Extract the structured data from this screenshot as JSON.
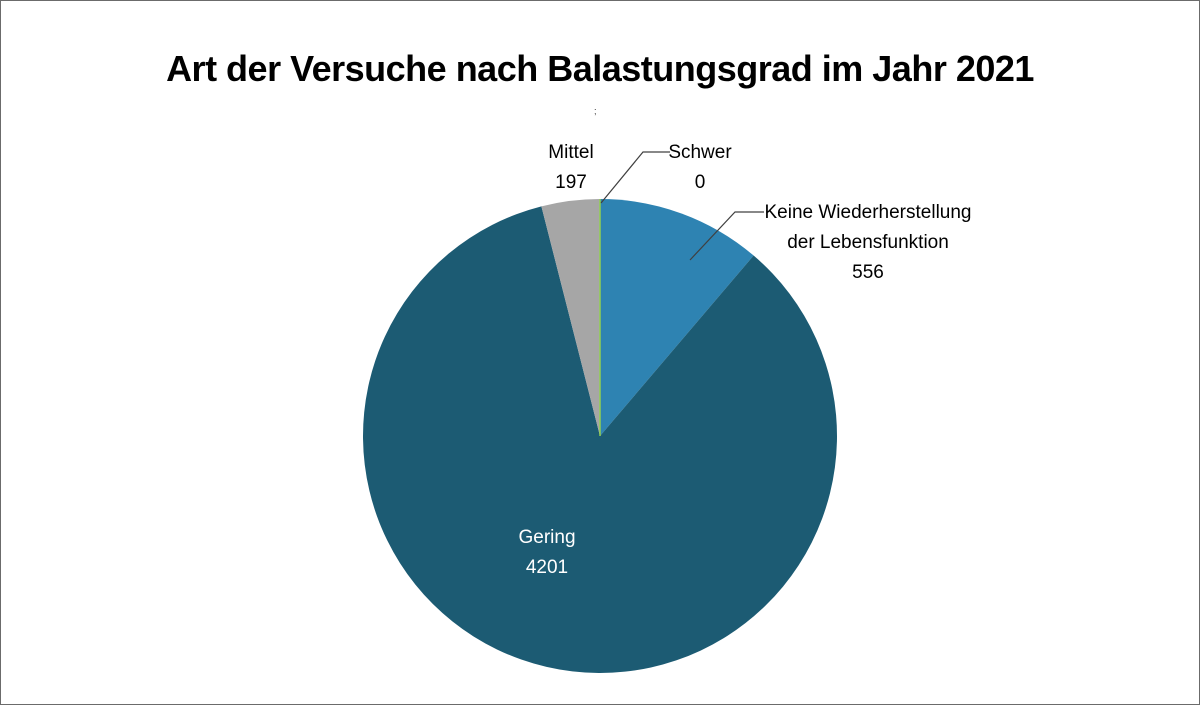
{
  "chart_data": {
    "type": "pie",
    "title": "Art der Versuche nach Balastungsgrad im Jahr 2021",
    "subtitle": ";",
    "slices": [
      {
        "label": "Keine Wiederherstellung der Lebensfunktion",
        "label_lines": [
          "Keine Wiederherstellung",
          "der Lebensfunktion"
        ],
        "value": 556,
        "value_label": "556",
        "color": "#2e83b2"
      },
      {
        "label": "Gering",
        "label_lines": [
          "Gering"
        ],
        "value": 4201,
        "value_label": "4201",
        "color": "#1c5b73"
      },
      {
        "label": "Mittel",
        "label_lines": [
          "Mittel"
        ],
        "value": 197,
        "value_label": "197",
        "color": "#a6a6a6"
      },
      {
        "label": "Schwer",
        "label_lines": [
          "Schwer"
        ],
        "value": 0,
        "value_label": "0",
        "color": "#92d050"
      }
    ],
    "legend": "none"
  }
}
